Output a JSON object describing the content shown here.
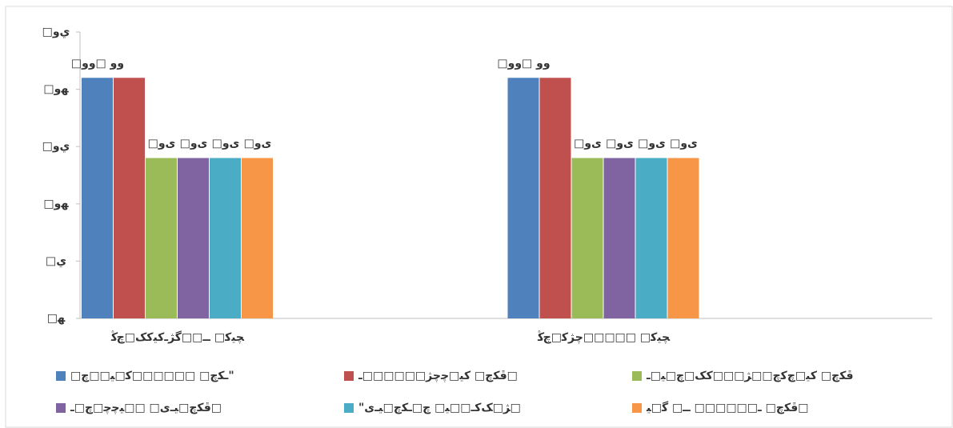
{
  "chart_data": {
    "type": "bar",
    "categories": [
      "ﭽﯿﮐ□ ــ□□ﮔﮋـﮐﯿﮐﮏ□ﭺﯕ",
      "ﭽﯿﮐ□ □□□□□ﭼﮋﮐ□ﭺﯕ"
    ],
    "series": [
      {
        "name": "□ـﮑﭺ□ □□□□□□ﮐ□ﯿ□□ﭺ\"",
        "color": "#4f81bd",
        "values": [
          4.2,
          4.2
        ],
        "value_labels": [
          "□وو □وو",
          "□وو □وو"
        ]
      },
      {
        "name": "ﭰﮑﭺ□ ﮐﯿ□ﭼﭼﮋ□□□□□□ـ□",
        "color": "#c0504d",
        "values": [
          4.2,
          4.2
        ],
        "value_labels": [
          "",
          ""
        ]
      },
      {
        "name": "ﭰﮑﭺ□ ﮐﯿ□ﭺﮐﭺ□□ﮋ□□□ﮐﮏ□ﭺ□ﯿ□ـ",
        "color": "#9bbb59",
        "values": [
          2.8,
          2.8
        ],
        "value_labels": [
          "□ﻯو",
          "□ﻯو"
        ]
      },
      {
        "name": "ﭰﮑﭺ□ﯿـﻯ□ □□ﯿﭼﭼ□ﭺ□ـ□",
        "color": "#8064a2",
        "values": [
          2.8,
          2.8
        ],
        "value_labels": [
          "□ﻯو",
          "□ﻯو"
        ]
      },
      {
        "name": "\"ﮋ□ﮏﮐـ□□ﯿ□ ﭺ□ـﮑﭺ□ﯿـﻯ□",
        "color": "#4bacc6",
        "values": [
          2.8,
          2.8
        ],
        "value_labels": [
          "□ﻯو",
          "□ﻯو"
        ]
      },
      {
        "name": "ﭰﮑﭺ□ ـ□□□□□□ ــ□ ﮔ□ﯿ□",
        "color": "#f79646",
        "values": [
          2.8,
          2.8
        ],
        "value_labels": [
          "□ﻯو",
          "□ﻯو"
        ]
      }
    ],
    "ylim": [
      0,
      5
    ],
    "yticks": [
      {
        "value": 0,
        "label": "□ﻬ"
      },
      {
        "value": 1,
        "label": "□ي"
      },
      {
        "value": 2,
        "label": "□ﻬو"
      },
      {
        "value": 3,
        "label": "□ﻱو"
      },
      {
        "value": 4,
        "label": "□ﻬو"
      },
      {
        "value": 5,
        "label": "□ﻱو"
      }
    ],
    "grid": false
  }
}
